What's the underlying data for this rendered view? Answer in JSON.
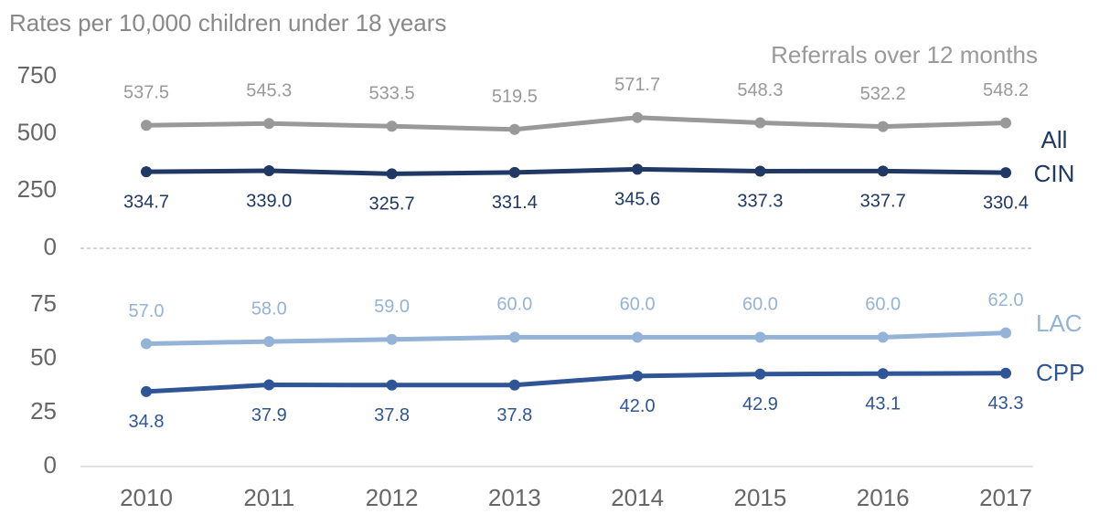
{
  "chart_data": [
    {
      "type": "line",
      "title": "Rates per 10,000 children under 18 years",
      "categories": [
        "2010",
        "2011",
        "2012",
        "2013",
        "2014",
        "2015",
        "2016",
        "2017"
      ],
      "ylim": [
        0,
        750
      ],
      "yticks": [
        0,
        250,
        500,
        750
      ],
      "series": [
        {
          "name": "Referrals over 12 months",
          "color": "#999999",
          "values": [
            537.5,
            545.3,
            533.5,
            519.5,
            571.7,
            548.3,
            532.2,
            548.2
          ]
        },
        {
          "name": "All CIN",
          "color": "#1f3864",
          "values": [
            334.7,
            339.0,
            325.7,
            331.4,
            345.6,
            337.3,
            337.7,
            330.4
          ],
          "value_labels": [
            "334.7",
            "339.0",
            "325.7",
            "331.4",
            "345.6",
            "337.3",
            "337.7",
            "330.4"
          ]
        }
      ]
    },
    {
      "type": "line",
      "categories": [
        "2010",
        "2011",
        "2012",
        "2013",
        "2014",
        "2015",
        "2016",
        "2017"
      ],
      "ylim": [
        0,
        75
      ],
      "yticks": [
        0,
        25,
        50,
        75
      ],
      "series": [
        {
          "name": "LAC",
          "color": "#95b3d7",
          "values": [
            57.0,
            58.0,
            59.0,
            60.0,
            60.0,
            60.0,
            60.0,
            62.0
          ],
          "value_labels": [
            "57.0",
            "58.0",
            "59.0",
            "60.0",
            "60.0",
            "60.0",
            "60.0",
            "62.0"
          ]
        },
        {
          "name": "CPP",
          "color": "#2f5597",
          "values": [
            34.8,
            37.9,
            37.8,
            37.8,
            42.0,
            42.9,
            43.1,
            43.3
          ],
          "value_labels": [
            "34.8",
            "37.9",
            "37.8",
            "37.8",
            "42.0",
            "42.9",
            "43.1",
            "43.3"
          ]
        }
      ]
    }
  ]
}
